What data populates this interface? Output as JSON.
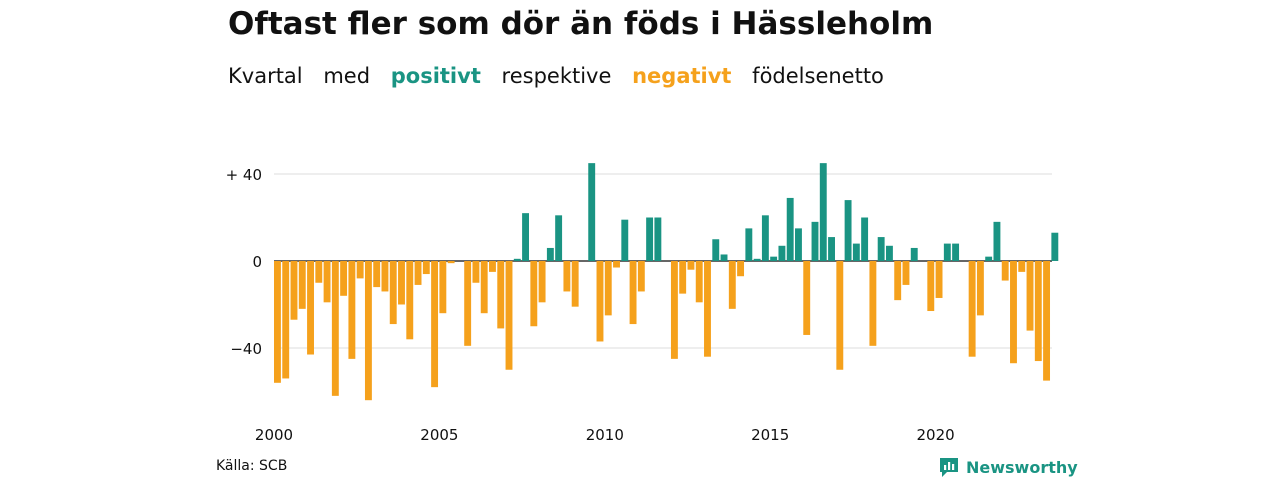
{
  "header": {
    "title": "Oftast fler som dör än föds i Hässleholm",
    "subtitle": {
      "w1": "Kvartal",
      "w2": "med",
      "positive_word": "positivt",
      "w4": "respektive",
      "negative_word": "negativt",
      "w6": "födelsenetto"
    }
  },
  "footer": {
    "source": "Källa: SCB",
    "brand": "Newsworthy"
  },
  "colors": {
    "positive": "#1a9483",
    "negative": "#f5a11c"
  },
  "chart_data": {
    "type": "bar",
    "x_start": "2000 Q1",
    "frequency": "quarterly",
    "yticks": [
      40,
      0,
      -40
    ],
    "ytick_labels": [
      "+ 40",
      "0",
      "−40"
    ],
    "xtick_labels": [
      "2000",
      "2005",
      "2010",
      "2015",
      "2020"
    ],
    "ylim": [
      -65,
      46
    ],
    "values": [
      -56,
      -54,
      -27,
      -22,
      -43,
      -10,
      -19,
      -62,
      -16,
      -45,
      -8,
      -64,
      -12,
      -14,
      -29,
      -20,
      -36,
      -11,
      -6,
      -58,
      -24,
      -1,
      0,
      -39,
      -10,
      -24,
      -5,
      -31,
      -50,
      1,
      22,
      -30,
      -19,
      6,
      21,
      -14,
      -21,
      0,
      45,
      -37,
      -25,
      -3,
      19,
      -29,
      -14,
      20,
      20,
      0,
      -45,
      -15,
      -4,
      -19,
      -44,
      10,
      3,
      -22,
      -7,
      15,
      1,
      21,
      2,
      7,
      29,
      15,
      -34,
      18,
      45,
      11,
      -50,
      28,
      8,
      20,
      -39,
      11,
      7,
      -18,
      -11,
      6,
      0,
      -23,
      -17,
      8,
      8,
      0,
      -44,
      -25,
      2,
      18,
      -9,
      -47,
      -5,
      -32,
      -46,
      -55,
      13
    ]
  }
}
